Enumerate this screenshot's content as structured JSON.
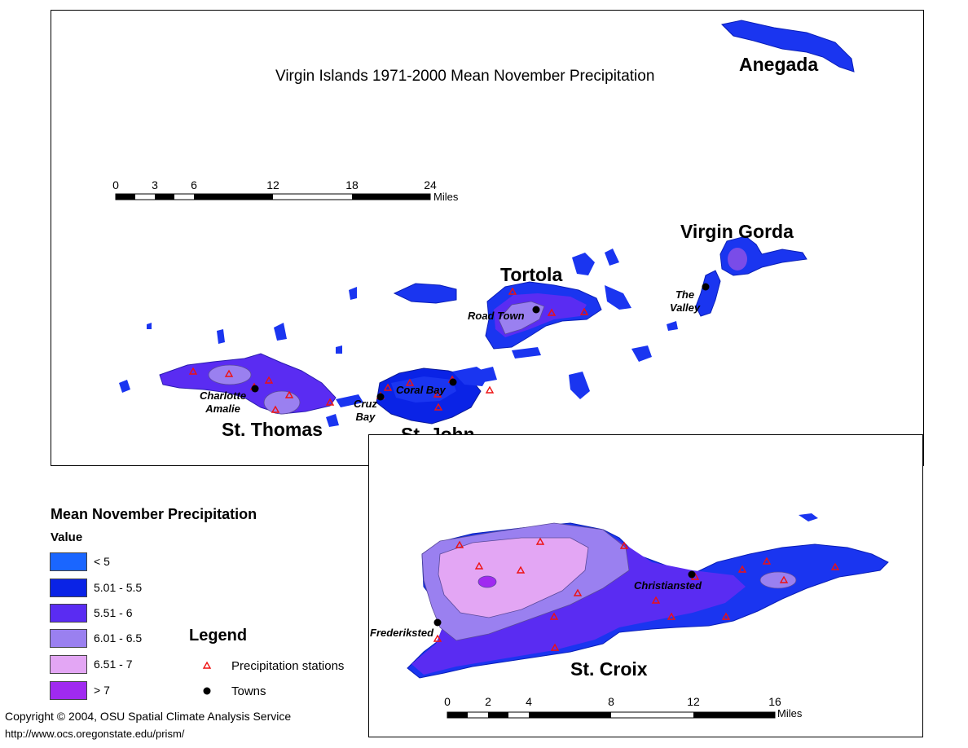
{
  "map": {
    "title": "Virgin Islands 1971-2000 Mean November Precipitation"
  },
  "islands": {
    "anegada": "Anegada",
    "virgin_gorda": "Virgin Gorda",
    "tortola": "Tortola",
    "st_thomas": "St. Thomas",
    "st_john": "St. John",
    "st_croix": "St. Croix"
  },
  "towns": {
    "road_town": "Road Town",
    "the_valley_1": "The",
    "the_valley_2": "Valley",
    "charlotte_1": "Charlotte",
    "charlotte_2": "Amalie",
    "cruz_1": "Cruz",
    "cruz_2": "Bay",
    "coral_bay": "Coral Bay",
    "christiansted": "Christiansted",
    "frederiksted": "Frederiksted"
  },
  "scale_main": {
    "ticks": [
      "0",
      "3",
      "6",
      "12",
      "18",
      "24"
    ],
    "units": "Miles"
  },
  "scale_inset": {
    "ticks": [
      "0",
      "2",
      "4",
      "8",
      "12",
      "16"
    ],
    "units": "Miles"
  },
  "legend": {
    "title": "Mean November Precipitation",
    "subtitle": "Value",
    "classes": [
      {
        "label": "< 5",
        "color": "#1a66ff"
      },
      {
        "label": "5.01 - 5.5",
        "color": "#0a23e6"
      },
      {
        "label": "5.51 - 6",
        "color": "#5a2cf2"
      },
      {
        "label": "6.01 - 6.5",
        "color": "#9a80f0"
      },
      {
        "label": "6.51 - 7",
        "color": "#e3a6f4"
      },
      {
        "label": "> 7",
        "color": "#a02af0"
      }
    ]
  },
  "symbol_legend": {
    "title": "Legend",
    "stations": "Precipitation stations",
    "towns": "Towns",
    "station_color": "#ee1111"
  },
  "footer": {
    "copyright": "Copyright © 2004, OSU Spatial Climate Analysis Service",
    "url": "http://www.ocs.oregonstate.edu/prism/"
  }
}
